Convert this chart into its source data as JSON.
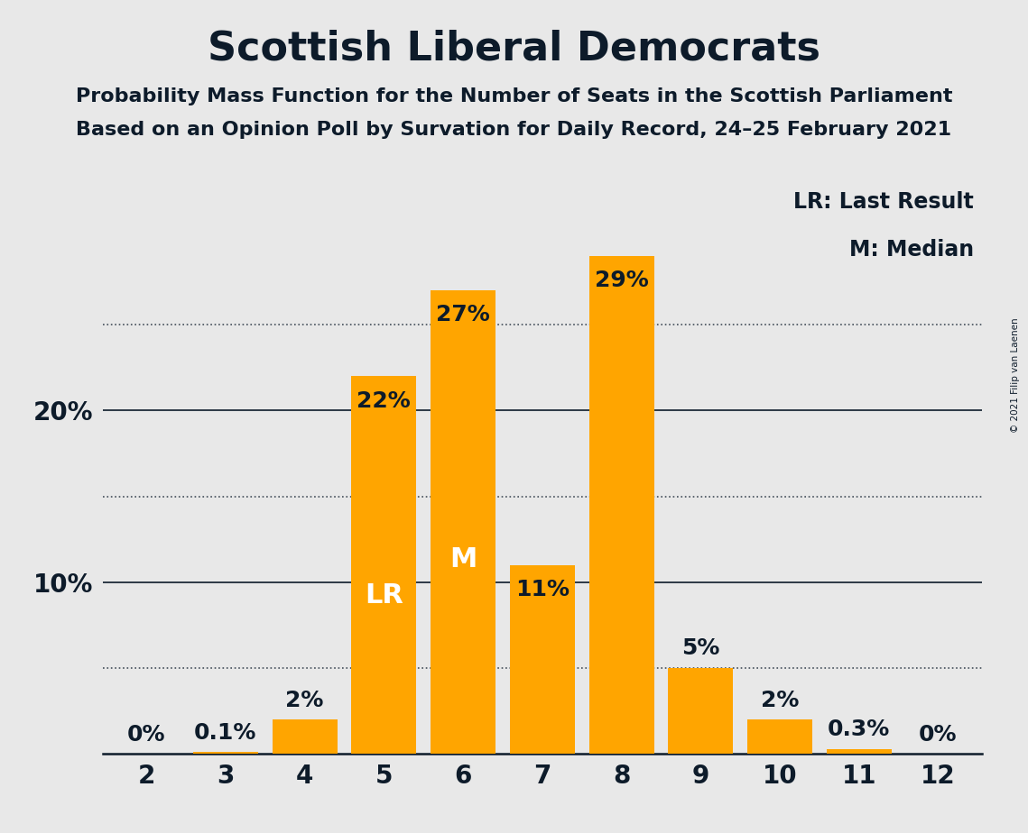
{
  "title": "Scottish Liberal Democrats",
  "subtitle1": "Probability Mass Function for the Number of Seats in the Scottish Parliament",
  "subtitle2": "Based on an Opinion Poll by Survation for Daily Record, 24–25 February 2021",
  "copyright": "© 2021 Filip van Laenen",
  "seats": [
    2,
    3,
    4,
    5,
    6,
    7,
    8,
    9,
    10,
    11,
    12
  ],
  "probabilities": [
    0.0,
    0.1,
    2.0,
    22.0,
    27.0,
    11.0,
    29.0,
    5.0,
    2.0,
    0.3,
    0.0
  ],
  "labels": [
    "0%",
    "0.1%",
    "2%",
    "22%",
    "27%",
    "11%",
    "29%",
    "5%",
    "2%",
    "0.3%",
    "0%"
  ],
  "bar_color": "#FFA500",
  "background_color": "#E8E8E8",
  "text_color": "#0D1B2A",
  "last_result_seat": 5,
  "median_seat": 6,
  "lr_label": "LR",
  "m_label": "M",
  "legend_lr": "LR: Last Result",
  "legend_m": "M: Median",
  "ylim": [
    0,
    33
  ],
  "solid_grid_lines": [
    10,
    20
  ],
  "dotted_grid_lines": [
    5,
    15,
    25
  ],
  "title_fontsize": 32,
  "subtitle_fontsize": 16,
  "tick_fontsize": 20,
  "legend_fontsize": 17,
  "bar_label_fontsize": 18,
  "inner_label_fontsize": 22
}
